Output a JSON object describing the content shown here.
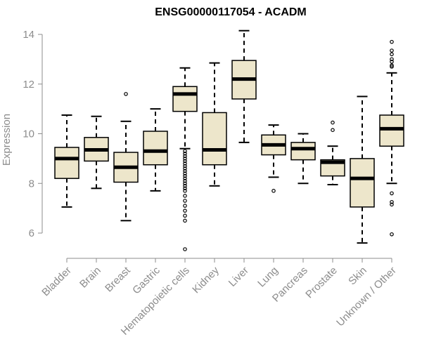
{
  "chart_data": {
    "type": "box",
    "title": "ENSG00000117054 - ACADM",
    "xlabel": "",
    "ylabel": "Expression",
    "ylim": [
      5.1,
      14.4
    ],
    "yticks": [
      6,
      8,
      10,
      12,
      14
    ],
    "grid": false,
    "colors": {
      "box_fill": "#ede6cb",
      "axis": "#8c8c8c",
      "text": "#000000"
    },
    "categories": [
      "Bladder",
      "Brain",
      "Breast",
      "Gastric",
      "Hematopoietic cells",
      "Kidney",
      "Liver",
      "Lung",
      "Pancreas",
      "Prostate",
      "Skin",
      "Unknown / Other"
    ],
    "boxes": [
      {
        "name": "Bladder",
        "whisker_low": 7.05,
        "q1": 8.2,
        "median": 9.0,
        "q3": 9.45,
        "whisker_high": 10.75,
        "outliers": []
      },
      {
        "name": "Brain",
        "whisker_low": 7.8,
        "q1": 8.9,
        "median": 9.35,
        "q3": 9.85,
        "whisker_high": 10.7,
        "outliers": []
      },
      {
        "name": "Breast",
        "whisker_low": 6.5,
        "q1": 8.05,
        "median": 8.65,
        "q3": 9.25,
        "whisker_high": 10.5,
        "outliers": [
          11.6
        ]
      },
      {
        "name": "Gastric",
        "whisker_low": 7.7,
        "q1": 8.75,
        "median": 9.3,
        "q3": 10.1,
        "whisker_high": 11.0,
        "outliers": []
      },
      {
        "name": "Hematopoietic cells",
        "whisker_low": 9.4,
        "q1": 10.9,
        "median": 11.6,
        "q3": 11.9,
        "whisker_high": 12.65,
        "outliers": [
          9.3,
          9.2,
          9.1,
          9.0,
          8.9,
          8.8,
          8.7,
          8.6,
          8.5,
          8.4,
          8.3,
          8.2,
          8.1,
          8.0,
          7.9,
          7.8,
          7.7,
          7.5,
          7.3,
          7.1,
          6.9,
          6.7,
          6.5,
          5.35
        ]
      },
      {
        "name": "Kidney",
        "whisker_low": 7.9,
        "q1": 8.75,
        "median": 9.35,
        "q3": 10.85,
        "whisker_high": 12.85,
        "outliers": []
      },
      {
        "name": "Liver",
        "whisker_low": 9.65,
        "q1": 11.4,
        "median": 12.2,
        "q3": 12.95,
        "whisker_high": 14.15,
        "outliers": []
      },
      {
        "name": "Lung",
        "whisker_low": 8.25,
        "q1": 9.15,
        "median": 9.55,
        "q3": 9.95,
        "whisker_high": 10.35,
        "outliers": [
          7.7
        ]
      },
      {
        "name": "Pancreas",
        "whisker_low": 8.0,
        "q1": 8.95,
        "median": 9.4,
        "q3": 9.65,
        "whisker_high": 10.0,
        "outliers": []
      },
      {
        "name": "Prostate",
        "whisker_low": 7.95,
        "q1": 8.3,
        "median": 8.85,
        "q3": 8.95,
        "whisker_high": 9.5,
        "outliers": [
          10.45,
          10.15
        ]
      },
      {
        "name": "Skin",
        "whisker_low": 5.6,
        "q1": 7.05,
        "median": 8.2,
        "q3": 9.0,
        "whisker_high": 11.5,
        "outliers": []
      },
      {
        "name": "Unknown / Other",
        "whisker_low": 8.0,
        "q1": 9.5,
        "median": 10.2,
        "q3": 10.75,
        "whisker_high": 12.45,
        "outliers": [
          13.7,
          13.35,
          13.2,
          13.0,
          12.9,
          12.75,
          12.7,
          7.6,
          7.25,
          7.15,
          5.95
        ]
      }
    ]
  }
}
